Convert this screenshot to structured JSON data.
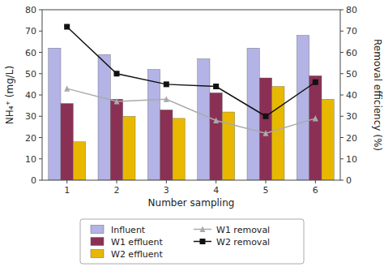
{
  "chart_data": {
    "type": "bar",
    "xlabel": "Number sampling",
    "ylabel": "NH₄⁺ (mg/L)",
    "y2label": "Removal efficiency (%)",
    "categories": [
      "1",
      "2",
      "3",
      "4",
      "5",
      "6"
    ],
    "series": [
      {
        "name": "Influent",
        "color": "#b3b3e6",
        "values": [
          62,
          59,
          52,
          57,
          62,
          68
        ]
      },
      {
        "name": "W1 effluent",
        "color": "#8b3055",
        "values": [
          36,
          38,
          33,
          41,
          48,
          49
        ]
      },
      {
        "name": "W2 effluent",
        "color": "#e8b800",
        "values": [
          18,
          30,
          29,
          32,
          44,
          38
        ]
      },
      {
        "name": "W1 removal",
        "type": "line",
        "axis": "y2",
        "color": "#aaaaaa",
        "marker": "triangle",
        "values": [
          43,
          37,
          38,
          28,
          22,
          29
        ]
      },
      {
        "name": "W2 removal",
        "type": "line",
        "axis": "y2",
        "color": "#111111",
        "marker": "square",
        "values": [
          72,
          50,
          45,
          44,
          30,
          46
        ]
      }
    ],
    "ylim": [
      0,
      80
    ],
    "yticks": [
      0,
      10,
      20,
      30,
      40,
      50,
      60,
      70,
      80
    ],
    "y2lim": [
      0,
      80
    ],
    "y2ticks": [
      0,
      10,
      20,
      30,
      40,
      50,
      60,
      70,
      80
    ],
    "grid": false,
    "legend": "bottom"
  }
}
